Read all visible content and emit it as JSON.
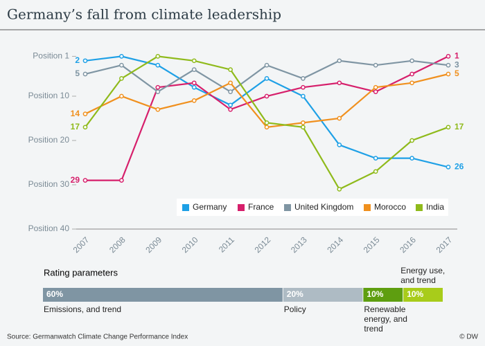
{
  "chart_data": {
    "type": "line",
    "title": "Germany’s fall from climate leadership",
    "categories": [
      "2007",
      "2008",
      "2009",
      "2010",
      "2011",
      "2012",
      "2013",
      "2014",
      "2015",
      "2016",
      "2017"
    ],
    "series": [
      {
        "name": "Germany",
        "color": "#1ea0e6",
        "values": [
          2,
          1,
          3,
          8,
          12,
          6,
          10,
          21,
          24,
          24,
          26
        ]
      },
      {
        "name": "France",
        "color": "#d61f6b",
        "values": [
          29,
          29,
          8,
          7,
          13,
          10,
          8,
          7,
          9,
          5,
          1
        ]
      },
      {
        "name": "United Kingdom",
        "color": "#7f95a3",
        "values": [
          5,
          3,
          9,
          4,
          9,
          3,
          6,
          2,
          3,
          2,
          3
        ]
      },
      {
        "name": "Morocco",
        "color": "#f0901e",
        "values": [
          14,
          10,
          13,
          11,
          7,
          17,
          16,
          15,
          8,
          7,
          5
        ]
      },
      {
        "name": "India",
        "color": "#8fba1b",
        "values": [
          17,
          6,
          1,
          2,
          4,
          16,
          17,
          31,
          27,
          20,
          17
        ]
      }
    ],
    "ylim": [
      0,
      40
    ],
    "y_inverted": true,
    "yticks": [
      {
        "value": 1,
        "label": "Position 1"
      },
      {
        "value": 10,
        "label": "Position 10"
      },
      {
        "value": 20,
        "label": "Position 20"
      },
      {
        "value": 30,
        "label": "Position 30"
      },
      {
        "value": 40,
        "label": "Position 40"
      }
    ],
    "grid": false,
    "legend": "bottom-right"
  },
  "rating": {
    "title": "Rating parameters",
    "segments": [
      {
        "label": "Emissions, and trend",
        "value": 60,
        "value_label": "60%",
        "color": "#7f95a3",
        "label_position": "below"
      },
      {
        "label": "Policy",
        "value": 20,
        "value_label": "20%",
        "color": "#aebbc4",
        "label_position": "below"
      },
      {
        "label": "Renewable energy, and trend",
        "value": 10,
        "value_label": "10%",
        "color": "#5e9e10",
        "label_position": "below"
      },
      {
        "label": "Energy use, and trend",
        "value": 10,
        "value_label": "10%",
        "color": "#a8cc1a",
        "label_position": "above"
      }
    ]
  },
  "source": "Source: Germanwatch Climate Change Performance Index",
  "credit": "© DW"
}
